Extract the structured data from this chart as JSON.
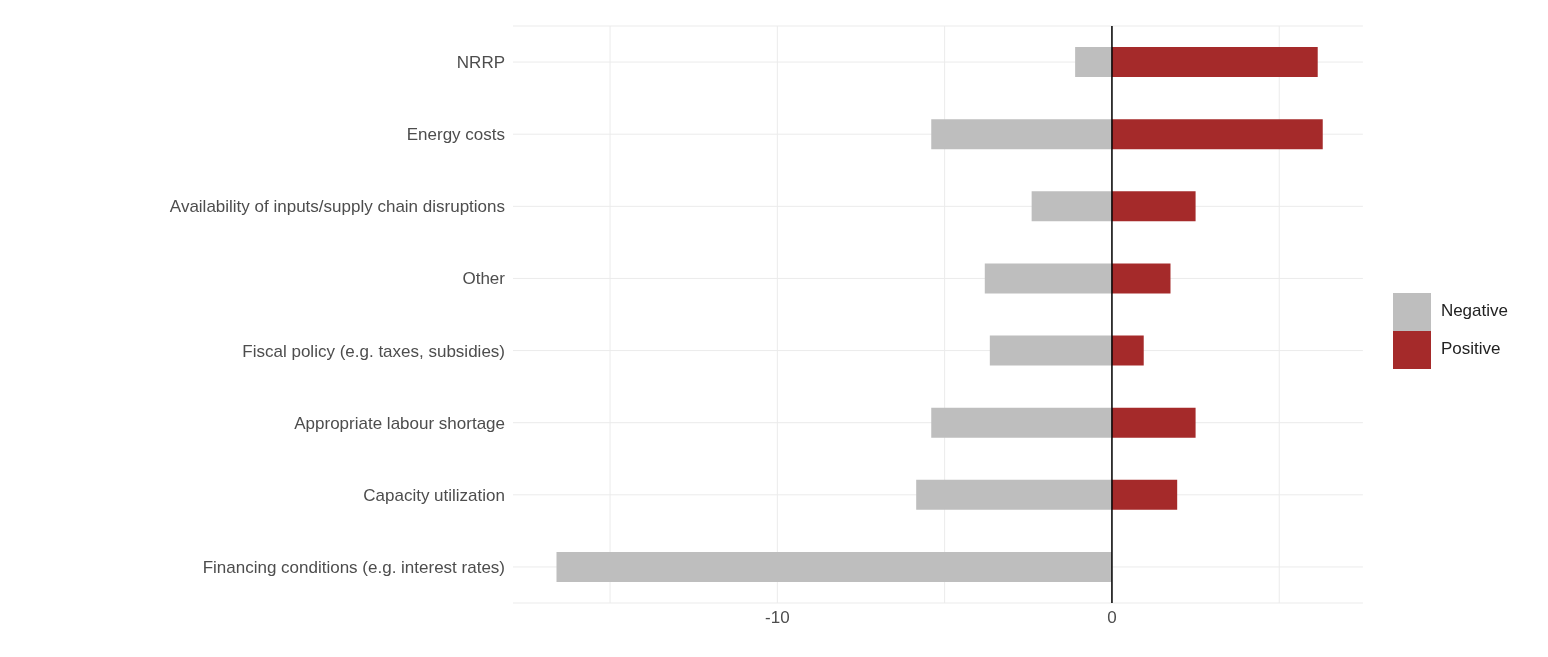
{
  "chart_data": {
    "type": "bar",
    "orientation": "horizontal",
    "stacked": true,
    "categories": [
      "NRRP",
      "Energy costs",
      "Availability of inputs/supply chain disruptions",
      "Other",
      "Fiscal policy (e.g. taxes, subsidies)",
      "Appropriate labour shortage",
      "Capacity utilization",
      "Financing conditions (e.g. interest rates)"
    ],
    "series": [
      {
        "name": "Positive",
        "color": "#a52a2a",
        "values": [
          6.15,
          6.3,
          2.5,
          1.75,
          0.95,
          2.5,
          1.95,
          0
        ]
      },
      {
        "name": "Negative",
        "color": "#bebebe",
        "values": [
          -1.1,
          -5.4,
          -2.4,
          -3.8,
          -3.65,
          -5.4,
          -5.85,
          -16.6
        ]
      }
    ],
    "xlim": [
      -17.9,
      7.5
    ],
    "xticks": [
      {
        "value": -15,
        "label": null
      },
      -10,
      {
        "value": -5,
        "label": null
      },
      0,
      {
        "value": 5,
        "label": null
      }
    ],
    "ref_lines": [
      {
        "axis": "x",
        "value": 0,
        "color": "#000000"
      }
    ],
    "grid": true,
    "legend": "right"
  }
}
